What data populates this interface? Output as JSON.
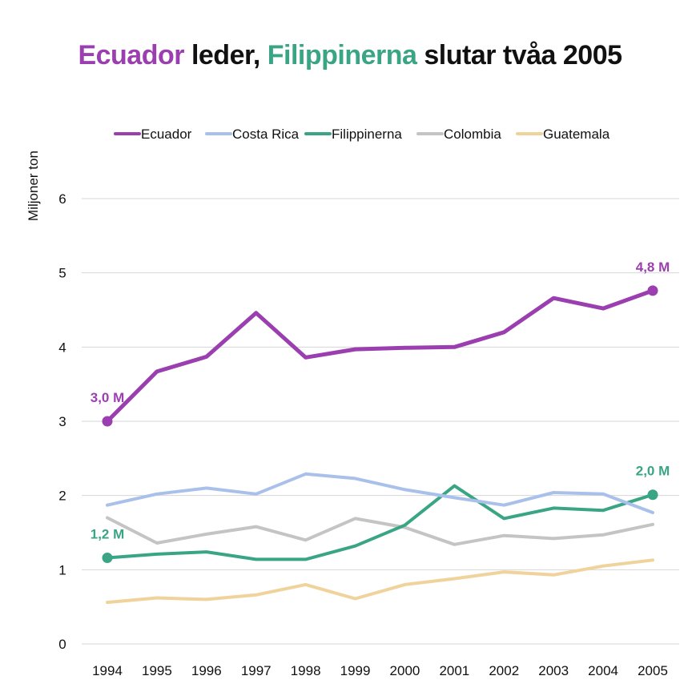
{
  "title": {
    "ecuador": "Ecuador",
    "mid": " leder, ",
    "filippinerna": "Filippinerna",
    "end": " slutar tvåa 2005"
  },
  "chart_data": {
    "type": "line",
    "title": "Ecuador leder, Filippinerna slutar tvåa 2005",
    "ylabel": "Miljoner ton",
    "xlabel": "",
    "x": [
      "1994",
      "1995",
      "1996",
      "1997",
      "1998",
      "1999",
      "2000",
      "2001",
      "2002",
      "2003",
      "2004",
      "2005"
    ],
    "ylim": [
      0,
      6
    ],
    "yticks": [
      0,
      1,
      2,
      3,
      4,
      5,
      6
    ],
    "grid": true,
    "legend_position": "top",
    "series": [
      {
        "name": "Ecuador",
        "color": "#9b3fb0",
        "width": 5,
        "values": [
          3.0,
          3.67,
          3.87,
          4.46,
          3.86,
          3.97,
          3.99,
          4.0,
          4.2,
          4.66,
          4.52,
          4.76
        ]
      },
      {
        "name": "Costa Rica",
        "color": "#a9c1ea",
        "width": 4,
        "values": [
          1.87,
          2.02,
          2.1,
          2.02,
          2.29,
          2.23,
          2.08,
          1.97,
          1.87,
          2.04,
          2.02,
          1.77
        ]
      },
      {
        "name": "Filippinerna",
        "color": "#3aa585",
        "width": 4,
        "values": [
          1.16,
          1.21,
          1.24,
          1.14,
          1.14,
          1.32,
          1.6,
          2.13,
          1.69,
          1.83,
          1.8,
          2.01
        ]
      },
      {
        "name": "Colombia",
        "color": "#c4c4c4",
        "width": 4,
        "values": [
          1.7,
          1.36,
          1.48,
          1.58,
          1.4,
          1.69,
          1.57,
          1.34,
          1.46,
          1.42,
          1.47,
          1.61
        ]
      },
      {
        "name": "Guatemala",
        "color": "#f0d29b",
        "width": 4,
        "values": [
          0.56,
          0.62,
          0.6,
          0.66,
          0.8,
          0.61,
          0.8,
          0.88,
          0.97,
          0.93,
          1.05,
          1.13
        ]
      }
    ],
    "annotations": [
      {
        "series": "Ecuador",
        "x": "1994",
        "label": "3,0 M",
        "color": "#9b3fb0"
      },
      {
        "series": "Ecuador",
        "x": "2005",
        "label": "4,8 M",
        "color": "#9b3fb0"
      },
      {
        "series": "Filippinerna",
        "x": "1994",
        "label": "1,2 M",
        "color": "#3aa585"
      },
      {
        "series": "Filippinerna",
        "x": "2005",
        "label": "2,0 M",
        "color": "#3aa585"
      }
    ]
  }
}
